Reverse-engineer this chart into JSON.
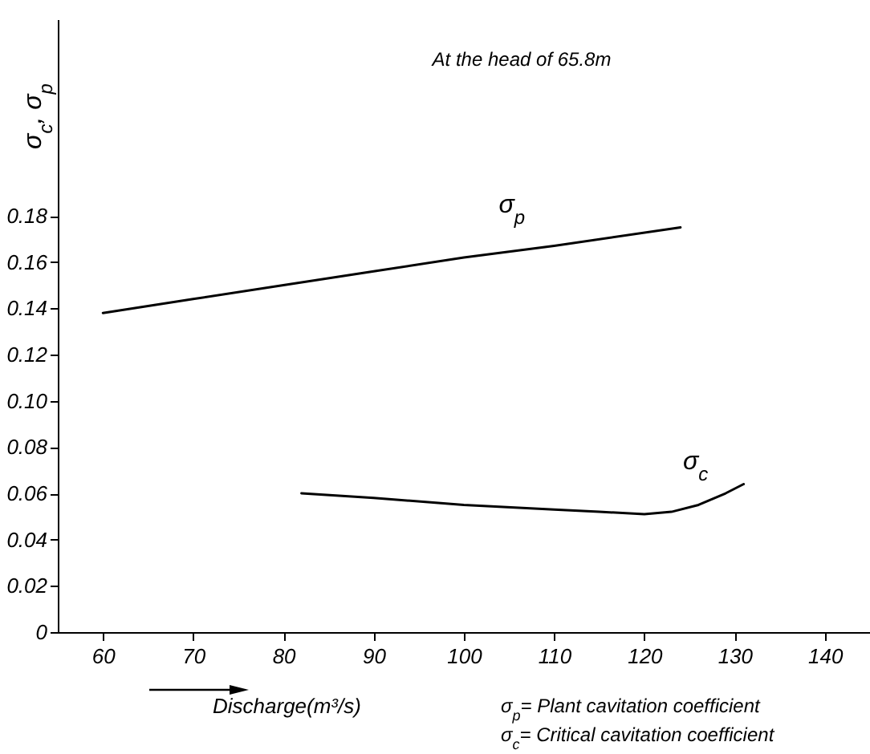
{
  "chart_data": {
    "type": "line",
    "xlabel": "Discharge(m³/s)",
    "ylabel": "σ$_{c}$, σ$_{p}$",
    "annotations": [
      "At the head of 65.8m",
      "σ$_{p}$= Plant cavitation coefficient",
      "σ$_{c}$= Critical cavitation coefficient"
    ],
    "series": [
      {
        "name": "σ$_{p}$",
        "color": "#000000",
        "x": [
          60,
          70,
          80,
          90,
          100,
          110,
          124
        ],
        "values": [
          0.138,
          0.144,
          0.15,
          0.156,
          0.162,
          0.167,
          0.175
        ]
      },
      {
        "name": "σ$_{c}$",
        "color": "#000000",
        "x": [
          82,
          90,
          100,
          110,
          115,
          120,
          123,
          126,
          129,
          131
        ],
        "values": [
          0.06,
          0.058,
          0.055,
          0.053,
          0.052,
          0.051,
          0.052,
          0.055,
          0.06,
          0.064
        ]
      }
    ],
    "xlim": [
      55,
      145
    ],
    "xticks": [
      60,
      70,
      80,
      90,
      100,
      110,
      120,
      130,
      140
    ],
    "ylim": [
      0,
      0.265
    ],
    "yticks": [
      0,
      0.02,
      0.04,
      0.06,
      0.08,
      {
        "value": 0.1,
        "label": "0.10"
      },
      0.12,
      0.14,
      0.16,
      0.18
    ],
    "grid": false,
    "marker": "none",
    "line_style": "solid"
  }
}
